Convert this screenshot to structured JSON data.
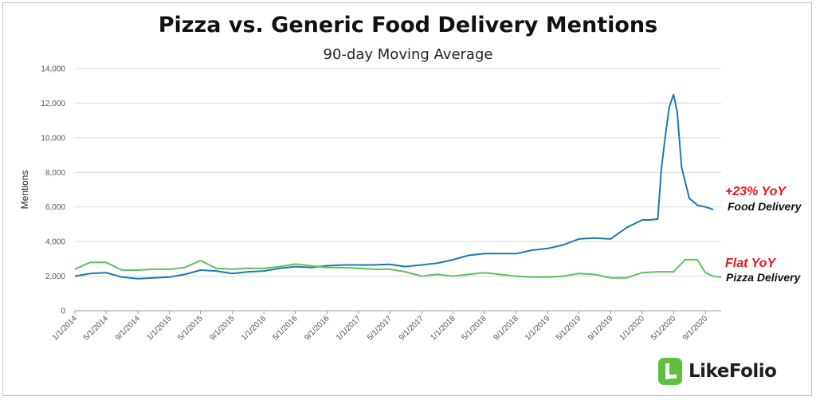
{
  "chart_data": {
    "type": "line",
    "title": "Pizza vs. Generic Food Delivery Mentions",
    "subtitle": "90-day Moving Average",
    "ylabel": "Mentions",
    "xlabel": "",
    "ylim": [
      0,
      14000
    ],
    "yticks": [
      0,
      2000,
      4000,
      6000,
      8000,
      10000,
      12000,
      14000
    ],
    "ytick_labels": [
      "0",
      "2,000",
      "4,000",
      "6,000",
      "8,000",
      "10,000",
      "12,000",
      "14,000"
    ],
    "x_range": [
      "1/1/2014",
      "11/1/2020"
    ],
    "xtick_labels": [
      "1/1/2014",
      "5/1/2014",
      "9/1/2014",
      "1/1/2015",
      "5/1/2015",
      "9/1/2015",
      "1/1/2016",
      "5/1/2016",
      "9/1/2016",
      "1/1/2017",
      "5/1/2017",
      "9/1/2017",
      "1/1/2018",
      "5/1/2018",
      "9/1/2018",
      "1/1/2019",
      "5/1/2019",
      "9/1/2019",
      "1/1/2020",
      "5/1/2020",
      "9/1/2020"
    ],
    "grid": "horizontal",
    "series": [
      {
        "name": "Food Delivery",
        "color": "#1f77b4",
        "points": [
          [
            "1/1/2014",
            2000
          ],
          [
            "3/1/2014",
            2150
          ],
          [
            "5/1/2014",
            2200
          ],
          [
            "7/1/2014",
            1950
          ],
          [
            "9/1/2014",
            1850
          ],
          [
            "11/1/2014",
            1900
          ],
          [
            "1/1/2015",
            1950
          ],
          [
            "3/1/2015",
            2100
          ],
          [
            "5/1/2015",
            2350
          ],
          [
            "7/1/2015",
            2300
          ],
          [
            "9/1/2015",
            2150
          ],
          [
            "11/1/2015",
            2250
          ],
          [
            "1/1/2016",
            2300
          ],
          [
            "3/1/2016",
            2450
          ],
          [
            "5/1/2016",
            2550
          ],
          [
            "7/1/2016",
            2500
          ],
          [
            "9/1/2016",
            2600
          ],
          [
            "11/1/2016",
            2650
          ],
          [
            "1/1/2017",
            2650
          ],
          [
            "3/1/2017",
            2650
          ],
          [
            "5/1/2017",
            2680
          ],
          [
            "7/1/2017",
            2550
          ],
          [
            "9/1/2017",
            2650
          ],
          [
            "11/1/2017",
            2750
          ],
          [
            "1/1/2018",
            2950
          ],
          [
            "3/1/2018",
            3200
          ],
          [
            "5/1/2018",
            3300
          ],
          [
            "7/1/2018",
            3300
          ],
          [
            "9/1/2018",
            3300
          ],
          [
            "11/1/2018",
            3500
          ],
          [
            "1/1/2019",
            3600
          ],
          [
            "3/1/2019",
            3800
          ],
          [
            "5/1/2019",
            4150
          ],
          [
            "7/1/2019",
            4200
          ],
          [
            "9/1/2019",
            4150
          ],
          [
            "11/1/2019",
            4800
          ],
          [
            "1/1/2020",
            5250
          ],
          [
            "2/1/2020",
            5250
          ],
          [
            "3/1/2020",
            5300
          ],
          [
            "3/15/2020",
            8200
          ],
          [
            "4/1/2020",
            10300
          ],
          [
            "4/15/2020",
            11800
          ],
          [
            "5/1/2020",
            12500
          ],
          [
            "5/15/2020",
            11500
          ],
          [
            "6/1/2020",
            8300
          ],
          [
            "7/1/2020",
            6500
          ],
          [
            "8/1/2020",
            6100
          ],
          [
            "9/1/2020",
            6000
          ],
          [
            "10/1/2020",
            5850
          ]
        ]
      },
      {
        "name": "Pizza Delivery",
        "color": "#5cc25c",
        "points": [
          [
            "1/1/2014",
            2400
          ],
          [
            "3/1/2014",
            2800
          ],
          [
            "5/1/2014",
            2800
          ],
          [
            "7/1/2014",
            2350
          ],
          [
            "9/1/2014",
            2350
          ],
          [
            "11/1/2014",
            2400
          ],
          [
            "1/1/2015",
            2400
          ],
          [
            "3/1/2015",
            2500
          ],
          [
            "5/1/2015",
            2900
          ],
          [
            "7/1/2015",
            2450
          ],
          [
            "9/1/2015",
            2400
          ],
          [
            "11/1/2015",
            2450
          ],
          [
            "1/1/2016",
            2450
          ],
          [
            "3/1/2016",
            2550
          ],
          [
            "5/1/2016",
            2700
          ],
          [
            "7/1/2016",
            2600
          ],
          [
            "9/1/2016",
            2500
          ],
          [
            "11/1/2016",
            2500
          ],
          [
            "1/1/2017",
            2450
          ],
          [
            "3/1/2017",
            2400
          ],
          [
            "5/1/2017",
            2400
          ],
          [
            "7/1/2017",
            2250
          ],
          [
            "9/1/2017",
            2000
          ],
          [
            "11/1/2017",
            2100
          ],
          [
            "1/1/2018",
            2000
          ],
          [
            "3/1/2018",
            2100
          ],
          [
            "5/1/2018",
            2200
          ],
          [
            "7/1/2018",
            2100
          ],
          [
            "9/1/2018",
            2000
          ],
          [
            "11/1/2018",
            1950
          ],
          [
            "1/1/2019",
            1950
          ],
          [
            "3/1/2019",
            2000
          ],
          [
            "5/1/2019",
            2150
          ],
          [
            "7/1/2019",
            2100
          ],
          [
            "9/1/2019",
            1900
          ],
          [
            "11/1/2019",
            1900
          ],
          [
            "1/1/2020",
            2200
          ],
          [
            "3/1/2020",
            2250
          ],
          [
            "5/1/2020",
            2250
          ],
          [
            "6/15/2020",
            2950
          ],
          [
            "8/1/2020",
            2950
          ],
          [
            "9/1/2020",
            2200
          ],
          [
            "10/1/2020",
            2000
          ],
          [
            "11/1/2020",
            1950
          ]
        ]
      }
    ],
    "annotations": [
      {
        "text": "+23% YoY",
        "color": "#e8141b",
        "near_series": "Food Delivery"
      },
      {
        "text": "Food Delivery",
        "color": "#111111",
        "near_series": "Food Delivery"
      },
      {
        "text": "Flat YoY",
        "color": "#e8141b",
        "near_series": "Pizza Delivery"
      },
      {
        "text": "Pizza Delivery",
        "color": "#111111",
        "near_series": "Pizza Delivery"
      }
    ]
  },
  "logo": {
    "text": "LikeFolio",
    "icon": "likefolio-logo-icon"
  }
}
